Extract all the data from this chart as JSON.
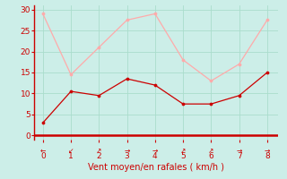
{
  "x": [
    0,
    1,
    2,
    3,
    4,
    5,
    6,
    7,
    8
  ],
  "y_avg": [
    3,
    10.5,
    9.5,
    13.5,
    12,
    7.5,
    7.5,
    9.5,
    15
  ],
  "y_gust": [
    29,
    14.5,
    21,
    27.5,
    29,
    18,
    13,
    17,
    27.5
  ],
  "color_avg": "#cc0000",
  "color_gust": "#ffaaaa",
  "xlabel": "Vent moyen/en rafales ( km/h )",
  "ylim": [
    -1,
    31
  ],
  "xlim": [
    -0.3,
    8.4
  ],
  "yticks": [
    0,
    5,
    10,
    15,
    20,
    25,
    30
  ],
  "xticks": [
    0,
    1,
    2,
    3,
    4,
    5,
    6,
    7,
    8
  ],
  "bg_color": "#cceee8",
  "grid_color": "#aaddcc",
  "wind_arrows": [
    "←",
    "↙",
    "↗",
    "→",
    "→",
    "↗",
    "↗",
    "→",
    "→"
  ],
  "tick_fontsize": 6.5,
  "label_fontsize": 7.0,
  "arrow_fontsize": 5.5
}
